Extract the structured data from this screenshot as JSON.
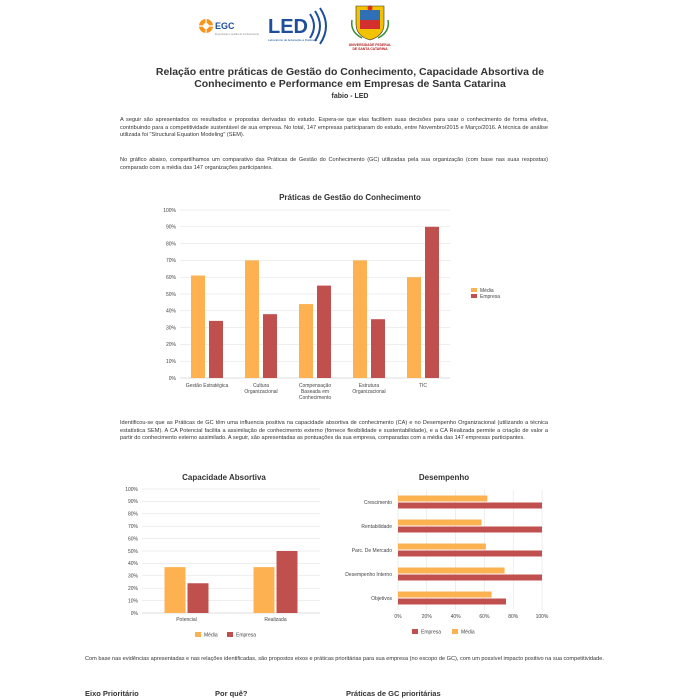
{
  "logos": {
    "egc": {
      "name": "EGC",
      "subtitle": "Engenharia e Gestão do Conhecimento"
    },
    "led": {
      "name": "LED",
      "subtitle": "Laboratório de Educação a Distância"
    },
    "ufsc": {
      "name": "UNIVERSIDADE FEDERAL DE SANTA CATARINA"
    }
  },
  "title_line1": "Relação entre práticas de Gestão do Conhecimento, Capacidade Absortiva de",
  "title_line2": "Conhecimento e Performance em Empresas de Santa Catarina",
  "author": "fabio - LED",
  "intro_paragraph": "A seguir são apresentados os resultados e propostas derivadas do estudo. Espera-se que elas facilitem suas decisões para usar o conhecimento de forma efetiva, contribuindo para a competitividade sustentável de sua empresa. No total, 147 empresas participaram do estudo, entre Novembro/2015 e Março/2016. A técnica de análise utilizada foi \"Structural Equation Modeling\" (SEM).",
  "chart_intro": "No gráfico abaixo, compartilhamos um comparativo das Práticas de Gestão do Conhecimento (GC) utilizadas pela sua organização (com base nas suas respostas) comparado com a média das 147 organizações participantes.",
  "middle_paragraph": "Identificou-se que as Práticas de GC têm uma influencia positiva na capacidade absortiva de conhecimento (CA) e no Desempenho Organizacional (utilizando a técnica estatística SEM). A CA Potencial facilita a assimilação de conhecimento externo (fornece flexibilidade e sustentabilidade), e a CA Realizada permite a criação de valor a partir do conhecimento externo assimilado. A seguir, são apresentadas as pontuações da sua empresa, comparadas com a média das 147 empresas participantes.",
  "closing_paragraph": "Com base nas evidências apresentadas e nas relações identificadas, são propostos eixos e práticas prioritárias para sua empresa (no escopo de GC), com um possível impacto positivo na sua competitividade.",
  "bottom_headers": [
    "Eixo Prioritário",
    "Por quê?",
    "Práticas de GC prioritárias"
  ],
  "colors": {
    "media": "#FDB150",
    "empresa": "#C0504D",
    "grid": "#dddddd"
  },
  "chart_data": [
    {
      "type": "bar",
      "title": "Práticas de Gestão do Conhecimento",
      "categories": [
        "Gestão Estratégica",
        "Cultura Organizacional",
        "Compensação Baseada em Conhecimento",
        "Estrutura Organizacional",
        "TIC"
      ],
      "category_lines": [
        [
          "Gestão Estratégica"
        ],
        [
          "Cultura",
          "Organizacional"
        ],
        [
          "Compensação",
          "Baseada em",
          "Conhecimento"
        ],
        [
          "Estrutura",
          "Organizacional"
        ],
        [
          "TIC"
        ]
      ],
      "series": [
        {
          "name": "Média",
          "values": [
            61,
            70,
            44,
            70,
            60
          ]
        },
        {
          "name": "Empresa",
          "values": [
            34,
            38,
            55,
            35,
            90
          ]
        }
      ],
      "ylim": [
        0,
        100
      ],
      "yticks": [
        "0%",
        "10%",
        "20%",
        "30%",
        "40%",
        "50%",
        "60%",
        "70%",
        "80%",
        "90%",
        "100%"
      ],
      "legend": "right"
    },
    {
      "type": "bar",
      "title": "Capacidade Absortiva",
      "categories": [
        "Potencial",
        "Realizada"
      ],
      "series": [
        {
          "name": "Média",
          "values": [
            37,
            37
          ]
        },
        {
          "name": "Empresa",
          "values": [
            24,
            50
          ]
        }
      ],
      "ylim": [
        0,
        100
      ],
      "yticks": [
        "0%",
        "10%",
        "20%",
        "30%",
        "40%",
        "50%",
        "60%",
        "70%",
        "80%",
        "90%",
        "100%"
      ],
      "legend": "bottom"
    },
    {
      "type": "bar",
      "orientation": "horizontal",
      "title": "Desempenho",
      "categories": [
        "Crescimento",
        "Rentabilidade",
        "Parc. De Mercado",
        "Desempenho Interno",
        "Objetivos"
      ],
      "series": [
        {
          "name": "Média",
          "values": [
            62,
            58,
            61,
            74,
            65
          ]
        },
        {
          "name": "Empresa",
          "values": [
            100,
            100,
            100,
            100,
            75
          ]
        }
      ],
      "xlim": [
        0,
        100
      ],
      "xticks": [
        "0%",
        "20%",
        "40%",
        "60%",
        "80%",
        "100%"
      ],
      "legend_order": [
        "Empresa",
        "Média"
      ],
      "legend": "bottom"
    }
  ]
}
